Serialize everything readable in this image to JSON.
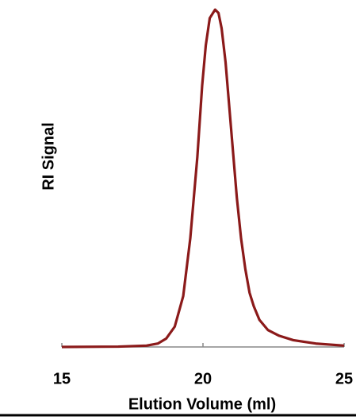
{
  "chart_data": {
    "type": "line",
    "xlabel": "Elution Volume (ml)",
    "ylabel": "RI Signal",
    "x": [
      15,
      17,
      18,
      18.4,
      18.7,
      19.0,
      19.3,
      19.55,
      19.8,
      19.97,
      20.1,
      20.24,
      20.43,
      20.55,
      20.66,
      20.8,
      20.94,
      21.07,
      21.2,
      21.35,
      21.5,
      21.65,
      21.8,
      22.0,
      22.3,
      22.7,
      23.2,
      24.0,
      25
    ],
    "series": [
      {
        "color": "#8b1a1a",
        "values": [
          0,
          0.001,
          0.004,
          0.01,
          0.025,
          0.06,
          0.15,
          0.32,
          0.56,
          0.77,
          0.89,
          0.97,
          0.995,
          0.985,
          0.94,
          0.84,
          0.7,
          0.57,
          0.44,
          0.32,
          0.23,
          0.16,
          0.12,
          0.08,
          0.05,
          0.033,
          0.02,
          0.01,
          0.004
        ]
      }
    ],
    "xlim": [
      15,
      25
    ],
    "ylim": [
      0,
      1
    ],
    "xticks": [
      15,
      20,
      25
    ],
    "grid": false
  }
}
